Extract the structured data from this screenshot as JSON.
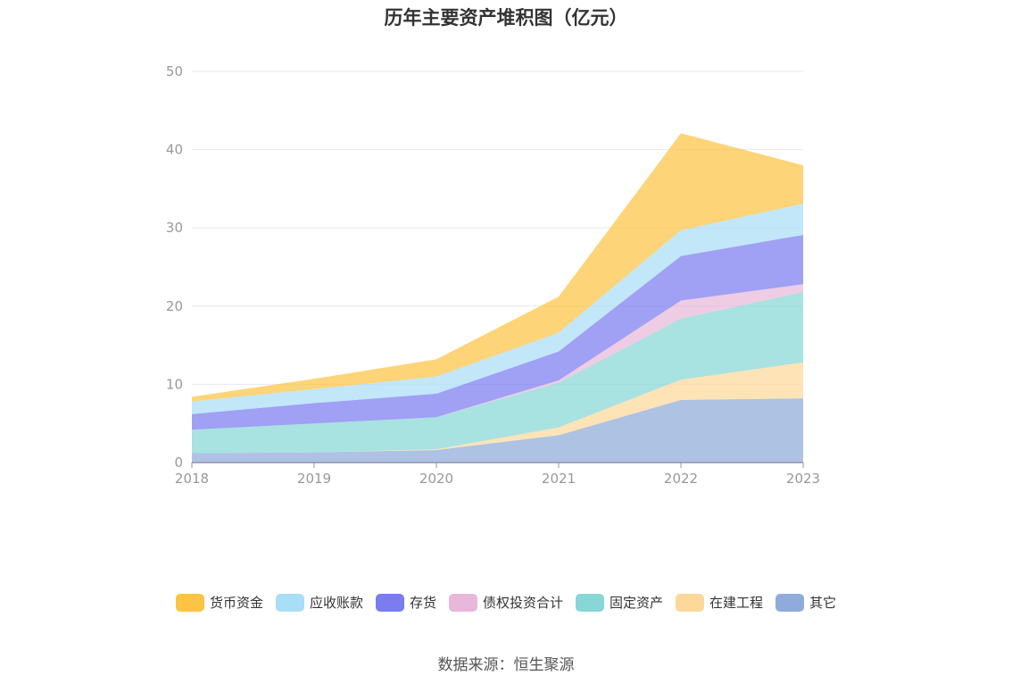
{
  "chart_data": {
    "type": "area",
    "title": "历年主要资产堆积图（亿元）",
    "source": "数据来源：恒生聚源",
    "x": [
      "2018",
      "2019",
      "2020",
      "2021",
      "2022",
      "2023"
    ],
    "ylim": [
      0,
      50
    ],
    "yticks": [
      "0",
      "10",
      "20",
      "30",
      "40",
      "50"
    ],
    "stacked": true,
    "grid": true,
    "legend_position": "bottom",
    "series": [
      {
        "name": "其它",
        "color": "#8fabda",
        "values": [
          1.2,
          1.3,
          1.6,
          3.5,
          8.0,
          8.2
        ]
      },
      {
        "name": "在建工程",
        "color": "#fcd89a",
        "values": [
          0.0,
          0.0,
          0.1,
          1.0,
          2.6,
          4.6
        ]
      },
      {
        "name": "固定资产",
        "color": "#86d7d6",
        "values": [
          3.0,
          3.7,
          4.1,
          5.7,
          7.8,
          9.0
        ]
      },
      {
        "name": "债权投资合计",
        "color": "#e8b8da",
        "values": [
          0.0,
          0.0,
          0.0,
          0.3,
          2.3,
          1.0
        ]
      },
      {
        "name": "存货",
        "color": "#7b7cf0",
        "values": [
          2.0,
          2.6,
          3.0,
          3.7,
          5.7,
          6.3
        ]
      },
      {
        "name": "应收账款",
        "color": "#a9def7",
        "values": [
          1.6,
          1.8,
          2.2,
          2.4,
          3.3,
          4.0
        ]
      },
      {
        "name": "货币资金",
        "color": "#fcc442",
        "values": [
          0.6,
          1.3,
          2.2,
          4.6,
          12.4,
          4.9
        ]
      }
    ],
    "legend_order": [
      "货币资金",
      "应收账款",
      "存货",
      "债权投资合计",
      "固定资产",
      "在建工程",
      "其它"
    ]
  }
}
